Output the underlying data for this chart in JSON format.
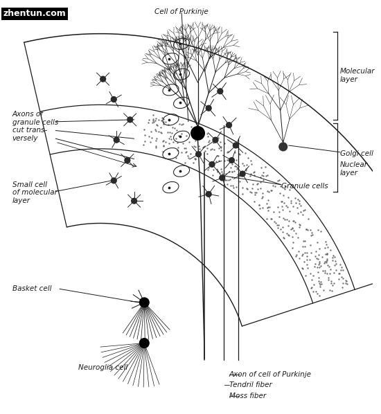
{
  "bg_color": "#ffffff",
  "watermark": "zhentun.com",
  "labels": {
    "cell_of_purkinje": "Cell of Purkinje",
    "molecular_layer": "Molecular\nlayer",
    "golgi_cell": "Golgi cell",
    "nuclear_layer": "Nuclear\nlayer",
    "granule_cells": "Granule cells",
    "axons_granule": "Axons of\ngranule cells\ncut trans-\nversely",
    "small_cell": "Small cell\nof molecular\nlayer",
    "basket_cell": "Basket cell",
    "neuroglia_cell": "Neuroglia cell",
    "axon_purkinje": "Axon of cell of Purkinje",
    "tendril_fiber": "Tendril fiber",
    "moss_fiber": "Moss fiber"
  },
  "line_color": "#1a1a1a",
  "text_color": "#1a1a1a",
  "label_fontsize": 7.5
}
